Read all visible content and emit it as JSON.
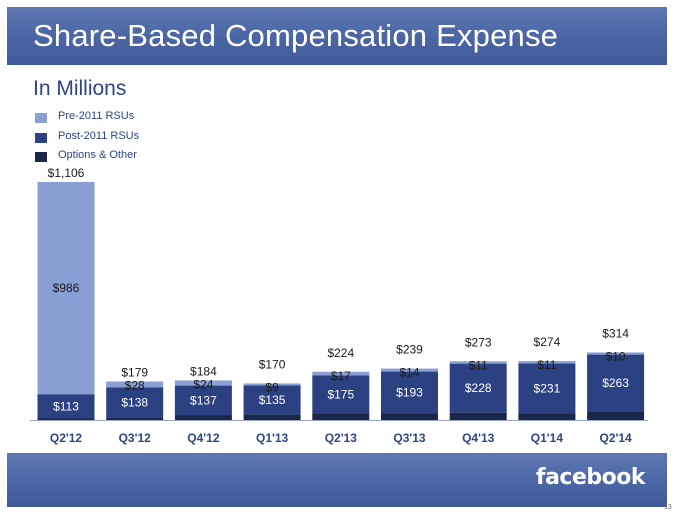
{
  "slide": {
    "title": "Share-Based Compensation Expense",
    "subtitle": "In Millions",
    "logo_text": "facebook",
    "page_number": "13"
  },
  "colors": {
    "pre2011": "#8a9fd3",
    "post2011": "#2c4182",
    "options": "#1a2748",
    "band": "#4a64a4",
    "axis_label": "#2d4584"
  },
  "legend": [
    {
      "label": "Pre-2011 RSUs",
      "color": "#8a9fd3"
    },
    {
      "label": "Post-2011 RSUs",
      "color": "#2c4182"
    },
    {
      "label": "Options & Other",
      "color": "#1a2748"
    }
  ],
  "chart_data": {
    "type": "bar",
    "stacked": true,
    "categories": [
      "Q2'12",
      "Q3'12",
      "Q4'12",
      "Q1'13",
      "Q2'13",
      "Q3'13",
      "Q4'13",
      "Q1'14",
      "Q2'14"
    ],
    "series": [
      {
        "name": "Options & Other",
        "values": [
          7,
          13,
          23,
          26,
          32,
          32,
          34,
          32,
          41
        ]
      },
      {
        "name": "Post-2011 RSUs",
        "values": [
          113,
          138,
          137,
          135,
          175,
          193,
          228,
          231,
          263
        ],
        "labels": [
          "$113",
          "$138",
          "$137",
          "$135",
          "$175",
          "$193",
          "$228",
          "$231",
          "$263"
        ]
      },
      {
        "name": "Pre-2011 RSUs",
        "values": [
          986,
          28,
          24,
          9,
          17,
          14,
          11,
          11,
          10
        ],
        "labels": [
          "$986",
          "$28",
          "$24",
          "$9",
          "$17",
          "$14",
          "$11",
          "$11",
          "$10"
        ]
      }
    ],
    "totals": [
      1106,
      179,
      184,
      170,
      224,
      239,
      273,
      274,
      314
    ],
    "total_labels": [
      "$1,106",
      "$179",
      "$184",
      "$170",
      "$224",
      "$239",
      "$273",
      "$274",
      "$314"
    ],
    "title": "",
    "xlabel": "",
    "ylabel": "",
    "ylim": [
      0,
      1106
    ],
    "grid": false,
    "legend_position": "top-left"
  }
}
